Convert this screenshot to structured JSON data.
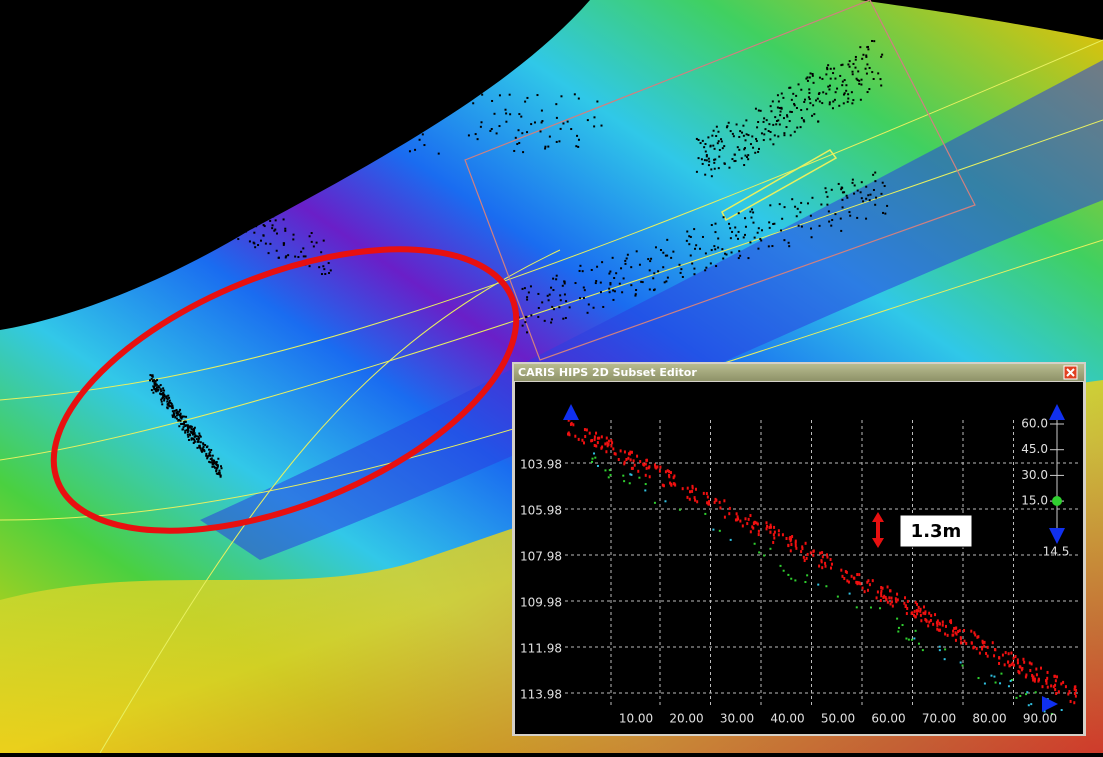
{
  "window": {
    "title": "CARIS HIPS 2D Subset Editor",
    "y_labels": [
      "103.98",
      "105.98",
      "107.98",
      "109.98",
      "111.98",
      "113.98"
    ],
    "x_labels": [
      "10.00",
      "20.00",
      "30.00",
      "40.00",
      "50.00",
      "60.00",
      "70.00",
      "80.00",
      "90.00"
    ],
    "scale_labels": [
      "60.0",
      "45.0",
      "30.0",
      "15.0"
    ],
    "scale_value": "14.5",
    "annotation": "1.3m"
  }
}
